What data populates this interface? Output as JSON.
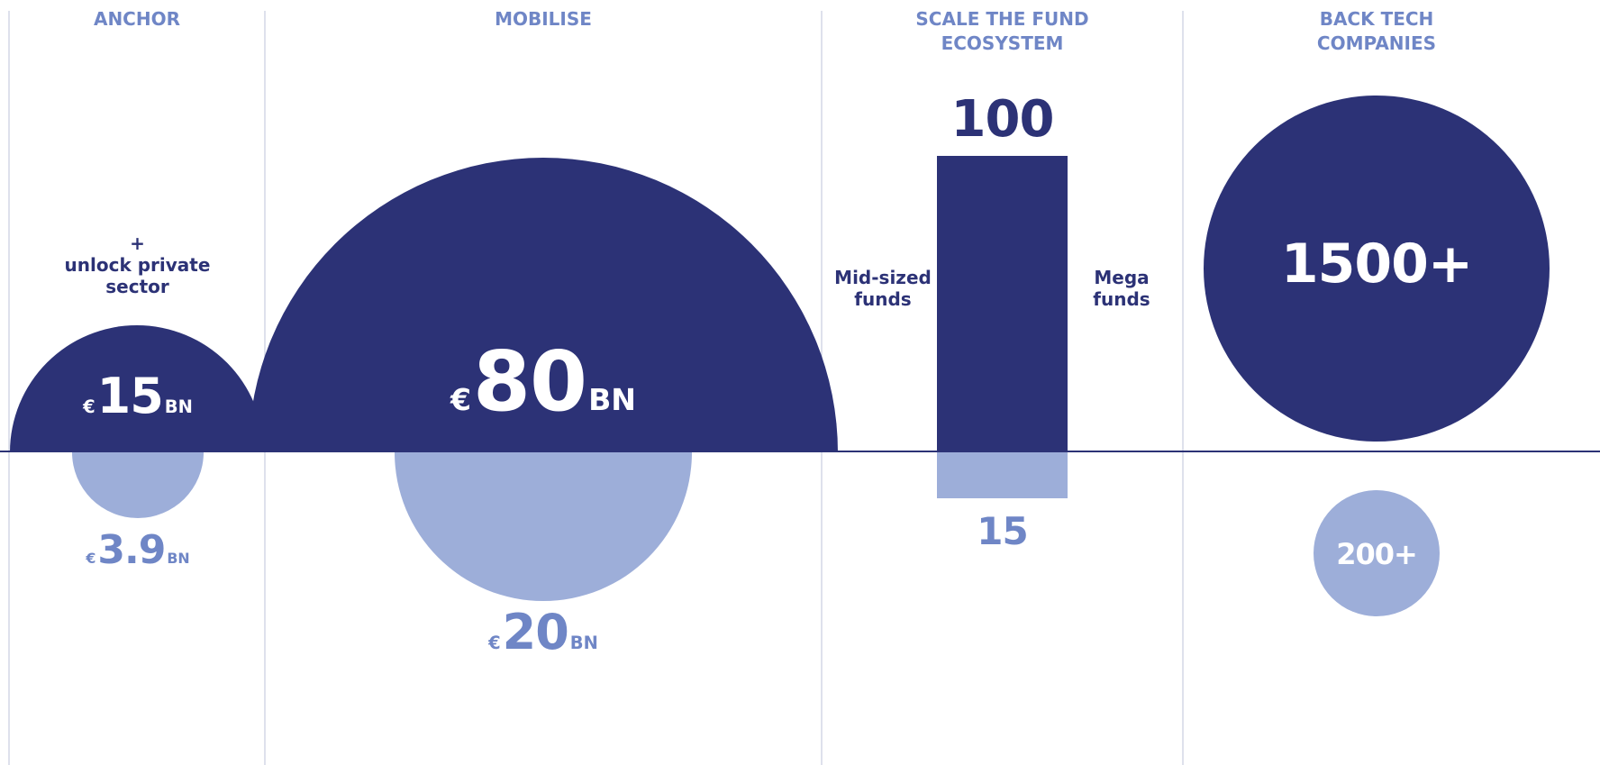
{
  "columns": [
    {
      "title": "ANCHOR"
    },
    {
      "title": "MOBILISE"
    },
    {
      "title": "SCALE THE FUND\nECOSYSTEM"
    },
    {
      "title": "BACK TECH\nCOMPANIES"
    }
  ],
  "anchor": {
    "note": "+\nunlock private\nsector",
    "upper": {
      "currency": "€",
      "value": "15",
      "unit": "BN"
    },
    "lower": {
      "currency": "€",
      "value": "3.9",
      "unit": "BN"
    }
  },
  "mobilise": {
    "upper": {
      "currency": "€",
      "value": "80",
      "unit": "BN"
    },
    "lower": {
      "currency": "€",
      "value": "20",
      "unit": "BN"
    }
  },
  "scale": {
    "top_value": "100",
    "bottom_value": "15",
    "left_label": "Mid-sized\nfunds",
    "right_label": "Mega\nfunds"
  },
  "back_tech": {
    "upper": "1500+",
    "lower": "200+"
  },
  "colors": {
    "dark": "#2c3276",
    "light": "#9daed9",
    "title": "#6f86c6",
    "divider": "#d3d7e6"
  }
}
